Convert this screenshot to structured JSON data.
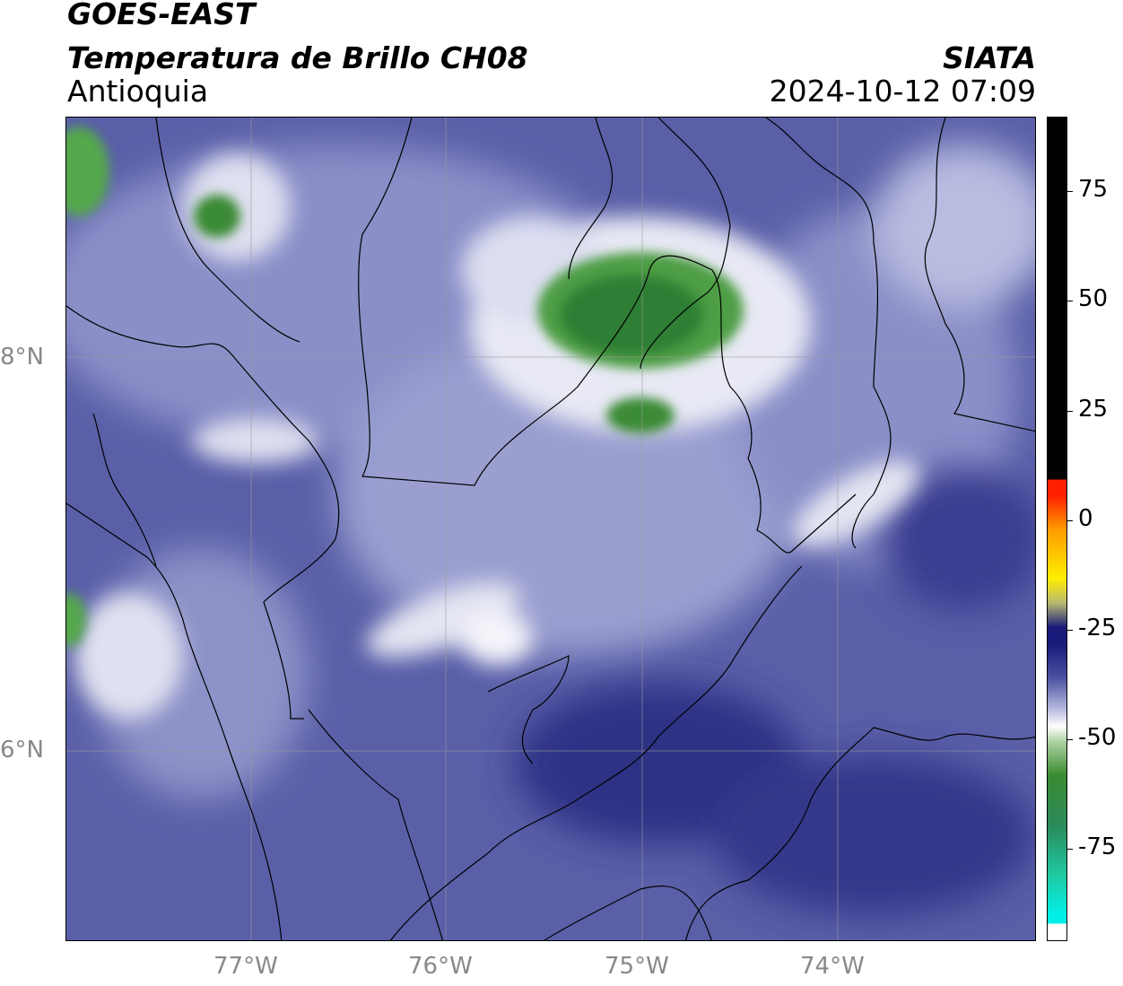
{
  "header": {
    "satellite": "GOES-EAST",
    "product": "Temperatura de Brillo CH08",
    "region": "Antioquia",
    "agency": "SIATA",
    "datetime": "2024-10-12 07:09"
  },
  "axes": {
    "lon_labels": [
      "77°W",
      "76°W",
      "75°W",
      "74°W"
    ],
    "lat_labels": [
      "8°N",
      "6°N"
    ]
  },
  "colorbar": {
    "ticks": [
      "75",
      "50",
      "25",
      "0",
      "-25",
      "-50",
      "-75"
    ],
    "colors": {
      "black": "#000000",
      "red": "#ff2000",
      "orange": "#ff9a00",
      "yellow": "#ffee00",
      "navy": "#1a1a7a",
      "blue_purple": "#4a4fa0",
      "white": "#ffffff",
      "green": "#3a8a30",
      "teal": "#20c8a0",
      "cyan": "#00f0e8"
    }
  },
  "map": {
    "background_color": "#5a5fa8",
    "cold_cloud_color": "#3f8f3a",
    "warm_color": "#2e3085"
  }
}
